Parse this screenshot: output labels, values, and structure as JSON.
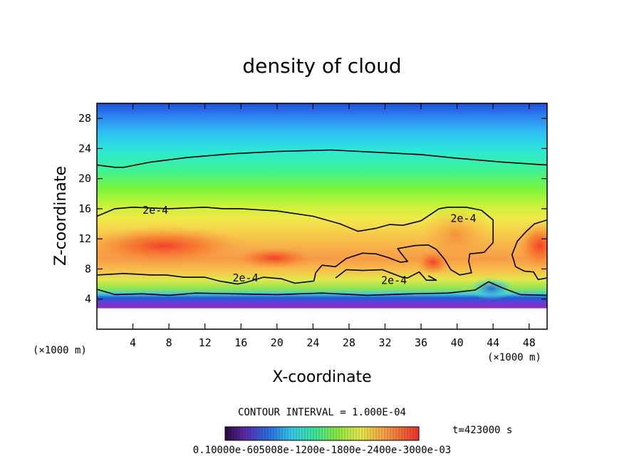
{
  "chart_data": {
    "type": "heatmap",
    "title": "density of cloud",
    "xlabel": "X-coordinate",
    "ylabel": "Z-coordinate",
    "x_unit": "(×1000 m)",
    "y_unit": "(×1000 m)",
    "xlim": [
      0,
      50
    ],
    "ylim": [
      0,
      30
    ],
    "x_ticks": [
      4,
      8,
      12,
      16,
      20,
      24,
      28,
      32,
      36,
      40,
      44,
      48
    ],
    "y_ticks": [
      4,
      8,
      12,
      16,
      20,
      24,
      28
    ],
    "contour_interval_text": "CONTOUR INTERVAL = 1.000E-04",
    "time_text": "t=423000 s",
    "colorbar_tick_text": "0.10000e-605008e-1200e-1800e-2400e-3000e-03",
    "contour_labels": [
      {
        "text": "2e-4",
        "x": 6.5,
        "z": 15.8
      },
      {
        "text": "2e-4",
        "x": 40.7,
        "z": 14.7
      },
      {
        "text": "2e-4",
        "x": 16.5,
        "z": 6.8
      },
      {
        "text": "2e-4",
        "x": 33.0,
        "z": 6.5
      }
    ],
    "contours": [
      {
        "level": "2e-4",
        "points": [
          [
            0,
            15.0
          ],
          [
            2,
            16.0
          ],
          [
            4,
            16.2
          ],
          [
            8,
            16.0
          ],
          [
            12,
            16.2
          ],
          [
            14,
            16.0
          ],
          [
            16,
            16.0
          ],
          [
            20,
            15.7
          ],
          [
            24,
            15.0
          ],
          [
            27,
            14.0
          ],
          [
            29,
            13.0
          ],
          [
            31,
            13.4
          ],
          [
            32.5,
            13.9
          ],
          [
            34,
            13.8
          ],
          [
            36,
            14.4
          ],
          [
            37.5,
            15.6
          ],
          [
            38,
            16.0
          ],
          [
            39,
            16.2
          ],
          [
            41,
            16.2
          ],
          [
            42.7,
            15.8
          ],
          [
            44,
            14.5
          ],
          [
            44,
            11.5
          ],
          [
            43,
            10.2
          ],
          [
            41.4,
            10.0
          ],
          [
            41.3,
            9.0
          ],
          [
            41.6,
            7.5
          ],
          [
            40.3,
            7.2
          ],
          [
            39.3,
            7.9
          ],
          [
            38.6,
            9.3
          ],
          [
            37.7,
            10.6
          ],
          [
            36.8,
            11.2
          ],
          [
            35.3,
            11.1
          ],
          [
            33.4,
            10.7
          ],
          [
            33.7,
            10.2
          ],
          [
            34.5,
            9.0
          ],
          [
            33.7,
            8.9
          ],
          [
            32.4,
            9.5
          ],
          [
            31.0,
            10.0
          ],
          [
            29.5,
            10.1
          ],
          [
            27.7,
            9.4
          ],
          [
            26.5,
            8.3
          ],
          [
            25.0,
            8.5
          ],
          [
            24.3,
            7.5
          ],
          [
            24.1,
            6.4
          ]
        ]
      },
      {
        "level": "2e-4",
        "points": [
          [
            0,
            7.2
          ],
          [
            3,
            7.4
          ],
          [
            6,
            7.2
          ],
          [
            7.7,
            7.2
          ],
          [
            9.7,
            6.9
          ],
          [
            12,
            6.9
          ],
          [
            13.6,
            6.4
          ],
          [
            15.6,
            6.0
          ],
          [
            16.5,
            6.2
          ],
          [
            18.5,
            6.9
          ],
          [
            20.5,
            6.7
          ],
          [
            22,
            6.1
          ],
          [
            24.1,
            6.4
          ]
        ]
      },
      {
        "level": "2e-4",
        "points": [
          [
            26.5,
            6.8
          ],
          [
            27.7,
            7.9
          ],
          [
            29.5,
            7.8
          ],
          [
            31.7,
            7.9
          ],
          [
            33.9,
            6.9
          ],
          [
            34.5,
            6.8
          ],
          [
            35.8,
            7.6
          ],
          [
            36.6,
            6.5
          ],
          [
            37.7,
            6.5
          ],
          [
            36.8,
            7.1
          ]
        ]
      },
      {
        "level": "2e-4",
        "points": [
          [
            50,
            14.5
          ],
          [
            48.6,
            14.0
          ],
          [
            47.7,
            13.0
          ],
          [
            46.7,
            11.7
          ],
          [
            46.1,
            9.9
          ],
          [
            46.5,
            8.3
          ],
          [
            47.5,
            7.7
          ],
          [
            48.5,
            7.6
          ],
          [
            49.0,
            6.6
          ],
          [
            50,
            6.8
          ]
        ]
      },
      {
        "level": "1e-4",
        "points": [
          [
            0,
            21.8
          ],
          [
            2,
            21.5
          ],
          [
            3,
            21.5
          ],
          [
            6,
            22.2
          ],
          [
            10,
            22.8
          ],
          [
            15,
            23.3
          ],
          [
            20,
            23.6
          ],
          [
            26,
            23.8
          ],
          [
            31,
            23.5
          ],
          [
            36,
            23.2
          ],
          [
            40,
            22.7
          ],
          [
            45,
            22.2
          ],
          [
            50,
            21.8
          ]
        ]
      },
      {
        "level": "1e-4",
        "points": [
          [
            0,
            5.3
          ],
          [
            2,
            4.6
          ],
          [
            5,
            4.7
          ],
          [
            8,
            4.5
          ],
          [
            11,
            4.8
          ],
          [
            15,
            4.7
          ],
          [
            20,
            4.6
          ],
          [
            25,
            4.8
          ],
          [
            30,
            4.5
          ],
          [
            35,
            4.7
          ],
          [
            39,
            4.8
          ],
          [
            42,
            5.2
          ],
          [
            43.5,
            6.3
          ],
          [
            45,
            5.5
          ],
          [
            47,
            4.6
          ],
          [
            50,
            4.5
          ]
        ]
      }
    ]
  }
}
